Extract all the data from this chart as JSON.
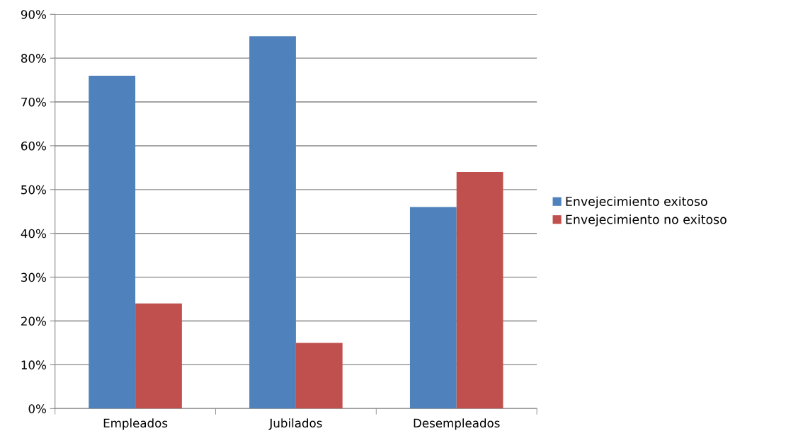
{
  "chart_data": {
    "type": "bar",
    "categories": [
      "Empleados",
      "Jubilados",
      "Desempleados"
    ],
    "series": [
      {
        "name": "Envejecimiento exitoso",
        "color": "#4f81bd",
        "values": [
          76,
          85,
          46
        ]
      },
      {
        "name": "Envejecimiento no exitoso",
        "color": "#c0504d",
        "values": [
          24,
          15,
          54
        ]
      }
    ],
    "ylim": [
      0,
      90
    ],
    "yticks": [
      {
        "value": 0,
        "label": "0%"
      },
      {
        "value": 10,
        "label": "10%"
      },
      {
        "value": 20,
        "label": "20%"
      },
      {
        "value": 30,
        "label": "30%"
      },
      {
        "value": 40,
        "label": "40%"
      },
      {
        "value": 50,
        "label": "50%"
      },
      {
        "value": 60,
        "label": "60%"
      },
      {
        "value": 70,
        "label": "70%"
      },
      {
        "value": 80,
        "label": "80%"
      },
      {
        "value": 90,
        "label": "90%"
      }
    ],
    "grid": "y",
    "legend": "right"
  }
}
